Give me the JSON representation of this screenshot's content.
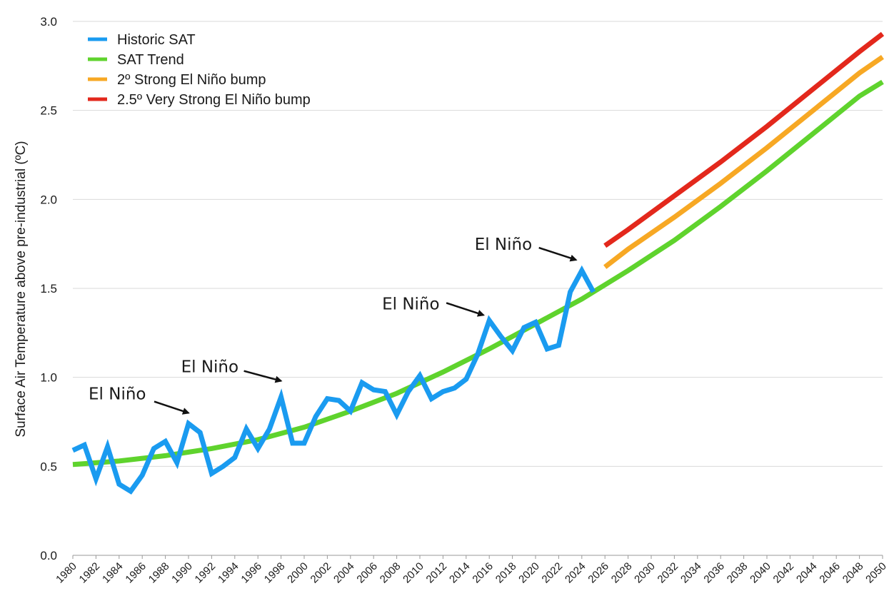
{
  "chart_data": {
    "type": "line",
    "title": "",
    "xlabel": "",
    "ylabel": "Surface Air Temperature above pre-industrial (ºC)",
    "xlim": [
      1980,
      2050
    ],
    "ylim": [
      0,
      3
    ],
    "y_ticks": [
      "0.0",
      "0.5",
      "1.0",
      "1.5",
      "2.0",
      "2.5",
      "3.0"
    ],
    "x_tick_labels": [
      "1980",
      "1982",
      "1984",
      "1986",
      "1988",
      "1990",
      "1992",
      "1994",
      "1996",
      "1998",
      "2000",
      "2002",
      "2004",
      "2006",
      "2008",
      "2010",
      "2012",
      "2014",
      "2016",
      "2018",
      "2020",
      "2022",
      "2024",
      "2026",
      "2028",
      "2030",
      "2032",
      "2034",
      "2036",
      "2038",
      "2040",
      "2042",
      "2044",
      "2046",
      "2048",
      "2050"
    ],
    "grid": "horizontal",
    "legend_position": "top-left",
    "series": [
      {
        "name": "Historic SAT",
        "color": "#1a9bf0",
        "x": [
          1980,
          1981,
          1982,
          1983,
          1984,
          1985,
          1986,
          1987,
          1988,
          1989,
          1990,
          1991,
          1992,
          1993,
          1994,
          1995,
          1996,
          1997,
          1998,
          1999,
          2000,
          2001,
          2002,
          2003,
          2004,
          2005,
          2006,
          2007,
          2008,
          2009,
          2010,
          2011,
          2012,
          2013,
          2014,
          2015,
          2016,
          2017,
          2018,
          2019,
          2020,
          2021,
          2022,
          2023,
          2024,
          2025
        ],
        "y": [
          0.59,
          0.62,
          0.43,
          0.61,
          0.4,
          0.36,
          0.45,
          0.6,
          0.64,
          0.52,
          0.74,
          0.69,
          0.46,
          0.5,
          0.55,
          0.71,
          0.6,
          0.71,
          0.89,
          0.63,
          0.63,
          0.78,
          0.88,
          0.87,
          0.81,
          0.97,
          0.93,
          0.92,
          0.79,
          0.92,
          1.01,
          0.88,
          0.92,
          0.94,
          0.99,
          1.13,
          1.32,
          1.23,
          1.15,
          1.28,
          1.31,
          1.16,
          1.18,
          1.48,
          1.6,
          1.48
        ]
      },
      {
        "name": "SAT Trend",
        "color": "#5fd32d",
        "x": [
          1980,
          1984,
          1988,
          1992,
          1996,
          2000,
          2004,
          2008,
          2012,
          2016,
          2020,
          2024,
          2028,
          2032,
          2036,
          2040,
          2044,
          2048,
          2050
        ],
        "y": [
          0.51,
          0.53,
          0.56,
          0.6,
          0.65,
          0.72,
          0.81,
          0.91,
          1.03,
          1.16,
          1.3,
          1.44,
          1.6,
          1.77,
          1.96,
          2.16,
          2.37,
          2.58,
          2.66
        ]
      },
      {
        "name": "2º Strong El Niño bump",
        "color": "#f7a824",
        "x": [
          2026,
          2028,
          2032,
          2036,
          2040,
          2044,
          2048,
          2050
        ],
        "y": [
          1.62,
          1.72,
          1.9,
          2.09,
          2.29,
          2.5,
          2.71,
          2.8
        ]
      },
      {
        "name": "2.5º Very Strong El Niño bump",
        "color": "#e3281c",
        "x": [
          2026,
          2028,
          2032,
          2036,
          2040,
          2044,
          2048,
          2050
        ],
        "y": [
          1.74,
          1.83,
          2.02,
          2.21,
          2.41,
          2.62,
          2.83,
          2.93
        ]
      }
    ],
    "annotations": [
      {
        "text": "El Niño",
        "target_x": 1990,
        "target_y": 0.8
      },
      {
        "text": "El Niño",
        "target_x": 1998,
        "target_y": 0.98
      },
      {
        "text": "El Niño",
        "target_x": 2015.5,
        "target_y": 1.35
      },
      {
        "text": "El Niño",
        "target_x": 2023.5,
        "target_y": 1.66
      }
    ]
  }
}
